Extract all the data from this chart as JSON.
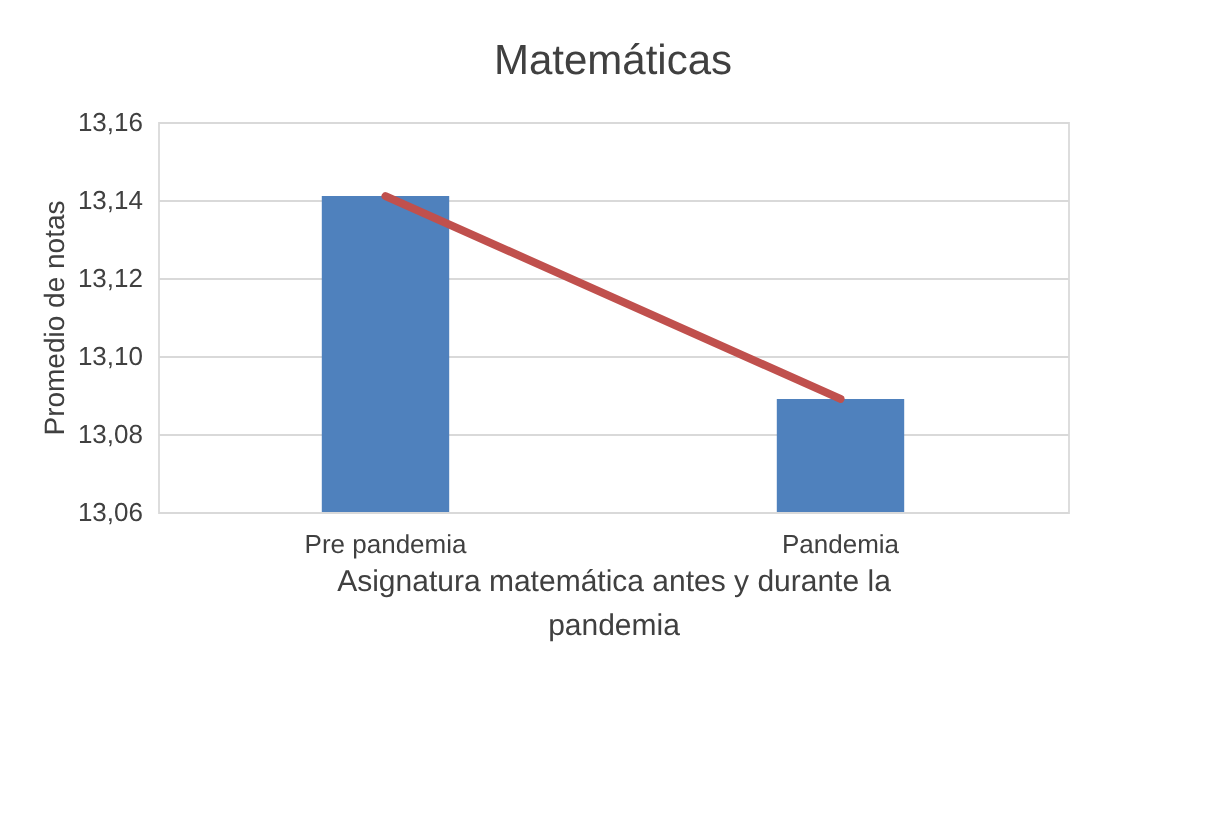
{
  "chart_data": {
    "type": "bar",
    "title": "Matemáticas",
    "xlabel": "Asignatura matemática antes y durante la pandemia",
    "ylabel": "Promedio de notas",
    "categories": [
      "Pre pandemia",
      "Pandemia"
    ],
    "series": [
      {
        "color": "#4f81bd",
        "values": [
          13.141,
          13.089
        ]
      },
      {
        "type": "line",
        "color": "#c0504d",
        "values": [
          13.141,
          13.089
        ]
      }
    ],
    "ylim": [
      13.06,
      13.16
    ],
    "yticks": [
      {
        "value": 13.06,
        "label": "13,06"
      },
      {
        "value": 13.08,
        "label": "13,08"
      },
      {
        "value": 13.1,
        "label": "13,10"
      },
      {
        "value": 13.12,
        "label": "13,12"
      },
      {
        "value": 13.14,
        "label": "13,14"
      },
      {
        "value": 13.16,
        "label": "13,16"
      }
    ],
    "grid": "y",
    "legend": false
  }
}
